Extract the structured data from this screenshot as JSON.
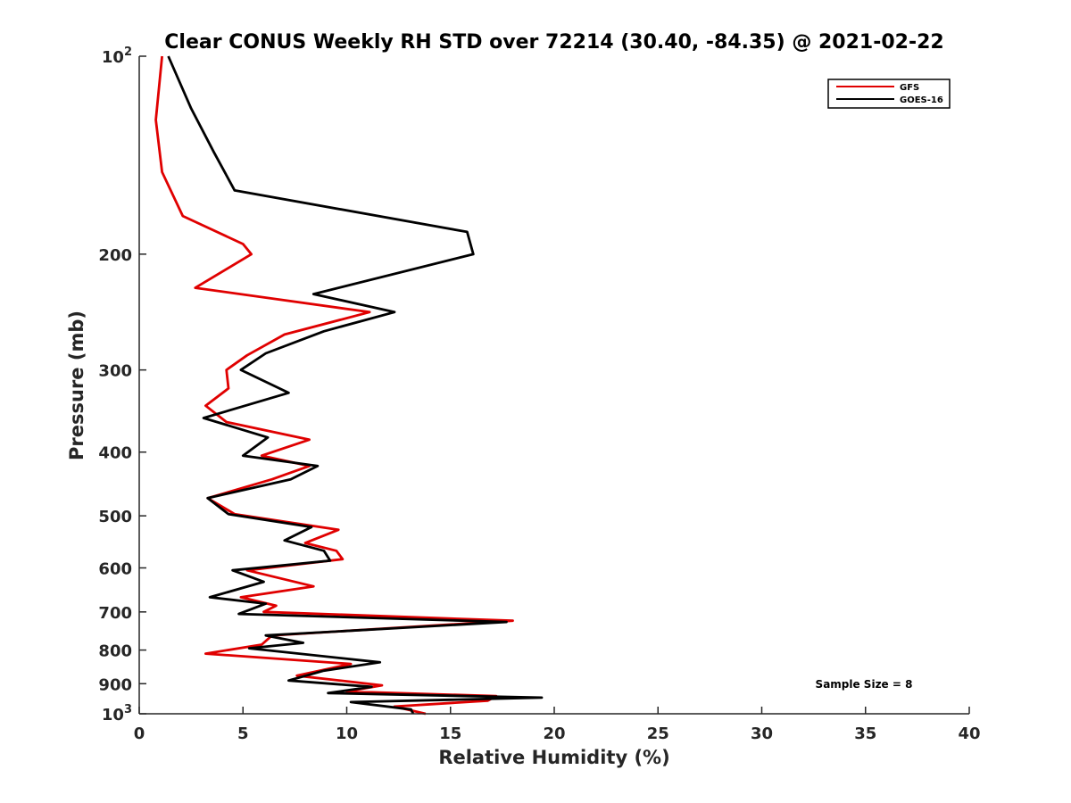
{
  "chart_data": {
    "type": "line",
    "title": "Clear CONUS Weekly RH STD over 72214 (30.40, -84.35) @ 2021-02-22",
    "xlabel": "Relative Humidity (%)",
    "ylabel": "Pressure (mb)",
    "xlim": [
      0,
      40
    ],
    "ylim": [
      100,
      1000
    ],
    "yscale": "log",
    "y_reversed": true,
    "x_ticks": [
      0,
      5,
      10,
      15,
      20,
      25,
      30,
      35,
      40
    ],
    "x_tick_labels": [
      "0",
      "5",
      "10",
      "15",
      "20",
      "25",
      "30",
      "35",
      "40"
    ],
    "y_ticks": [
      100,
      200,
      300,
      400,
      500,
      600,
      700,
      800,
      900,
      1000
    ],
    "y_tick_labels": [
      {
        "base": "10",
        "exp": "2"
      },
      {
        "base": "200",
        "exp": ""
      },
      {
        "base": "300",
        "exp": ""
      },
      {
        "base": "400",
        "exp": ""
      },
      {
        "base": "500",
        "exp": ""
      },
      {
        "base": "600",
        "exp": ""
      },
      {
        "base": "700",
        "exp": ""
      },
      {
        "base": "800",
        "exp": ""
      },
      {
        "base": "900",
        "exp": ""
      },
      {
        "base": "10",
        "exp": "3"
      }
    ],
    "legend_position": "top-right",
    "annotation": "Sample Size = 8",
    "series": [
      {
        "name": "GFS",
        "color": "#e00000",
        "points": [
          [
            1.1,
            100
          ],
          [
            0.8,
            125
          ],
          [
            1.1,
            150
          ],
          [
            2.1,
            175
          ],
          [
            5.0,
            193
          ],
          [
            5.4,
            200
          ],
          [
            2.7,
            225
          ],
          [
            11.1,
            245
          ],
          [
            7.0,
            265
          ],
          [
            5.2,
            285
          ],
          [
            4.2,
            300
          ],
          [
            4.3,
            320
          ],
          [
            3.2,
            340
          ],
          [
            4.2,
            360
          ],
          [
            8.2,
            383
          ],
          [
            5.9,
            405
          ],
          [
            8.2,
            420
          ],
          [
            6.4,
            440
          ],
          [
            3.3,
            470
          ],
          [
            4.6,
            497
          ],
          [
            9.6,
            525
          ],
          [
            8.0,
            550
          ],
          [
            9.5,
            565
          ],
          [
            9.8,
            582
          ],
          [
            5.2,
            605
          ],
          [
            8.4,
            640
          ],
          [
            4.9,
            665
          ],
          [
            6.6,
            685
          ],
          [
            6.0,
            700
          ],
          [
            18.0,
            722
          ],
          [
            6.4,
            760
          ],
          [
            5.9,
            785
          ],
          [
            3.2,
            810
          ],
          [
            10.2,
            840
          ],
          [
            7.6,
            875
          ],
          [
            11.7,
            905
          ],
          [
            10.0,
            925
          ],
          [
            17.2,
            940
          ],
          [
            16.8,
            955
          ],
          [
            12.3,
            975
          ],
          [
            13.8,
            1000
          ]
        ]
      },
      {
        "name": "GOES-16",
        "color": "#000000",
        "points": [
          [
            1.4,
            100
          ],
          [
            2.5,
            120
          ],
          [
            3.6,
            140
          ],
          [
            4.6,
            160
          ],
          [
            15.8,
            185
          ],
          [
            16.1,
            200
          ],
          [
            8.4,
            230
          ],
          [
            12.3,
            245
          ],
          [
            8.9,
            262
          ],
          [
            6.1,
            283
          ],
          [
            4.9,
            300
          ],
          [
            7.2,
            325
          ],
          [
            3.1,
            355
          ],
          [
            6.2,
            380
          ],
          [
            5.0,
            405
          ],
          [
            8.6,
            420
          ],
          [
            7.3,
            440
          ],
          [
            3.3,
            470
          ],
          [
            4.3,
            497
          ],
          [
            8.3,
            520
          ],
          [
            7.0,
            545
          ],
          [
            8.9,
            565
          ],
          [
            9.2,
            585
          ],
          [
            4.5,
            605
          ],
          [
            6.0,
            630
          ],
          [
            3.4,
            665
          ],
          [
            6.1,
            680
          ],
          [
            4.8,
            705
          ],
          [
            17.7,
            725
          ],
          [
            6.1,
            760
          ],
          [
            7.9,
            780
          ],
          [
            5.3,
            795
          ],
          [
            11.6,
            835
          ],
          [
            8.9,
            860
          ],
          [
            7.2,
            890
          ],
          [
            11.2,
            910
          ],
          [
            9.1,
            930
          ],
          [
            19.4,
            945
          ],
          [
            10.2,
            960
          ],
          [
            13.1,
            985
          ],
          [
            13.2,
            1000
          ]
        ]
      }
    ]
  }
}
